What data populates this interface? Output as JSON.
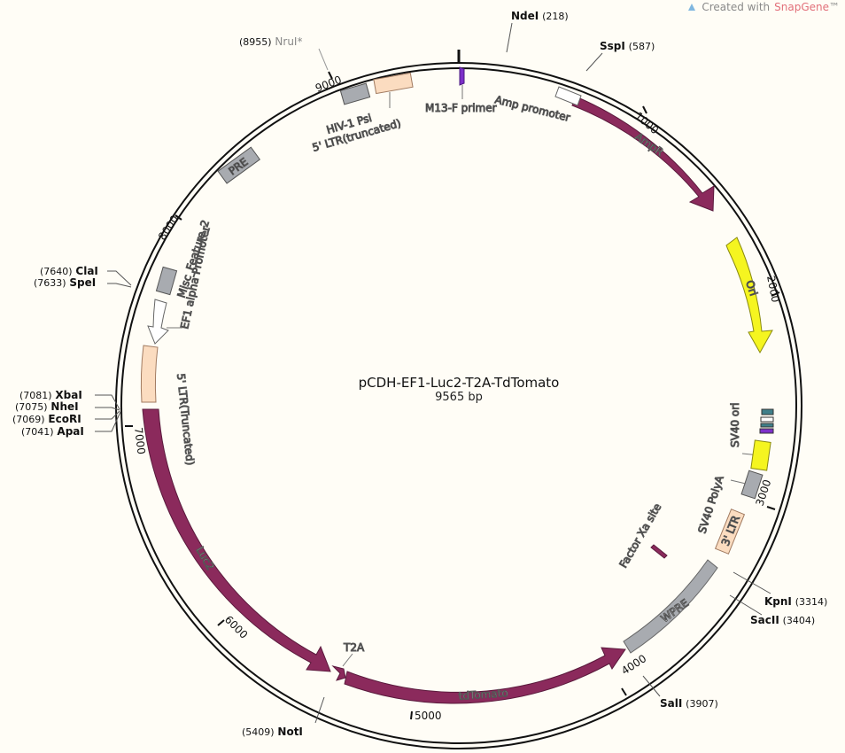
{
  "header": {
    "credit_prefix": "Created with",
    "credit_brand": "SnapGene",
    "credit_suffix": "™"
  },
  "plasmid": {
    "name": "pCDH-EF1-Luc2-T2A-TdTomato",
    "length_label": "9565 bp",
    "length": 9565
  },
  "ticks": [
    {
      "bp": 1000,
      "label": "1000"
    },
    {
      "bp": 2000,
      "label": "2000"
    },
    {
      "bp": 3000,
      "label": "3000"
    },
    {
      "bp": 4000,
      "label": "4000"
    },
    {
      "bp": 5000,
      "label": "5000"
    },
    {
      "bp": 6000,
      "label": "6000"
    },
    {
      "bp": 7000,
      "label": "7000"
    },
    {
      "bp": 8000,
      "label": "8000"
    },
    {
      "bp": 9000,
      "label": "9000"
    }
  ],
  "sites": [
    {
      "name": "NdeI",
      "pos": "(218)",
      "color": "#111111"
    },
    {
      "name": "SspI",
      "pos": "(587)",
      "color": "#111111"
    },
    {
      "name": "KpnI",
      "pos": "(3314)",
      "color": "#111111"
    },
    {
      "name": "SacII",
      "pos": "(3404)",
      "color": "#111111"
    },
    {
      "name": "SalI",
      "pos": "(3907)",
      "color": "#111111"
    },
    {
      "name": "NotI",
      "pos": "(5409)",
      "color": "#111111"
    },
    {
      "name": "ApaI",
      "pos": "(7041)",
      "color": "#111111"
    },
    {
      "name": "EcoRI",
      "pos": "(7069)",
      "color": "#111111"
    },
    {
      "name": "NheI",
      "pos": "(7075)",
      "color": "#111111"
    },
    {
      "name": "XbaI",
      "pos": "(7081)",
      "color": "#111111"
    },
    {
      "name": "SpeI",
      "pos": "(7633)",
      "color": "#111111"
    },
    {
      "name": "ClaI",
      "pos": "(7640)",
      "color": "#111111"
    },
    {
      "name": "NruI*",
      "pos": "(8955)",
      "color": "#888888"
    }
  ],
  "features": [
    {
      "name": "AmpR",
      "type": "arrow",
      "color": "#8b2a5c"
    },
    {
      "name": "Amp promoter",
      "type": "box",
      "color": "#ffffff"
    },
    {
      "name": "Ori",
      "type": "arrow",
      "color": "#f5f520"
    },
    {
      "name": "SV40 ori",
      "type": "small",
      "color": "#3f7f8a"
    },
    {
      "name": "SV40 PolyA",
      "type": "box",
      "color": "#f5f520"
    },
    {
      "name": "3' LTR",
      "type": "box",
      "color": "#fbdcc0"
    },
    {
      "name": "Factor Xa site",
      "type": "small",
      "color": "#8b2a5c"
    },
    {
      "name": "WPRE",
      "type": "box",
      "color": "#a8abb0"
    },
    {
      "name": "tdTomato",
      "type": "arrow",
      "color": "#8b2a5c"
    },
    {
      "name": "T2A",
      "type": "arrow",
      "color": "#8b2a5c"
    },
    {
      "name": "Luc2",
      "type": "arrow",
      "color": "#8b2a5c"
    },
    {
      "name": "5' LTR(Truncated)",
      "type": "box",
      "color": "#fbdcc0"
    },
    {
      "name": "EF1 alpha Promoter",
      "type": "arrow",
      "color": "#ffffff"
    },
    {
      "name": "Misc_Feature_2",
      "type": "box",
      "color": "#a8abb0"
    },
    {
      "name": "PRE",
      "type": "box",
      "color": "#a8abb0"
    },
    {
      "name": "HIV-1 Psi",
      "type": "box",
      "color": "#a8abb0"
    },
    {
      "name": "5' LTR(truncated)",
      "type": "box",
      "color": "#fbdcc0"
    },
    {
      "name": "M13-F primer",
      "type": "primer",
      "color": "#7d2fc9"
    }
  ]
}
